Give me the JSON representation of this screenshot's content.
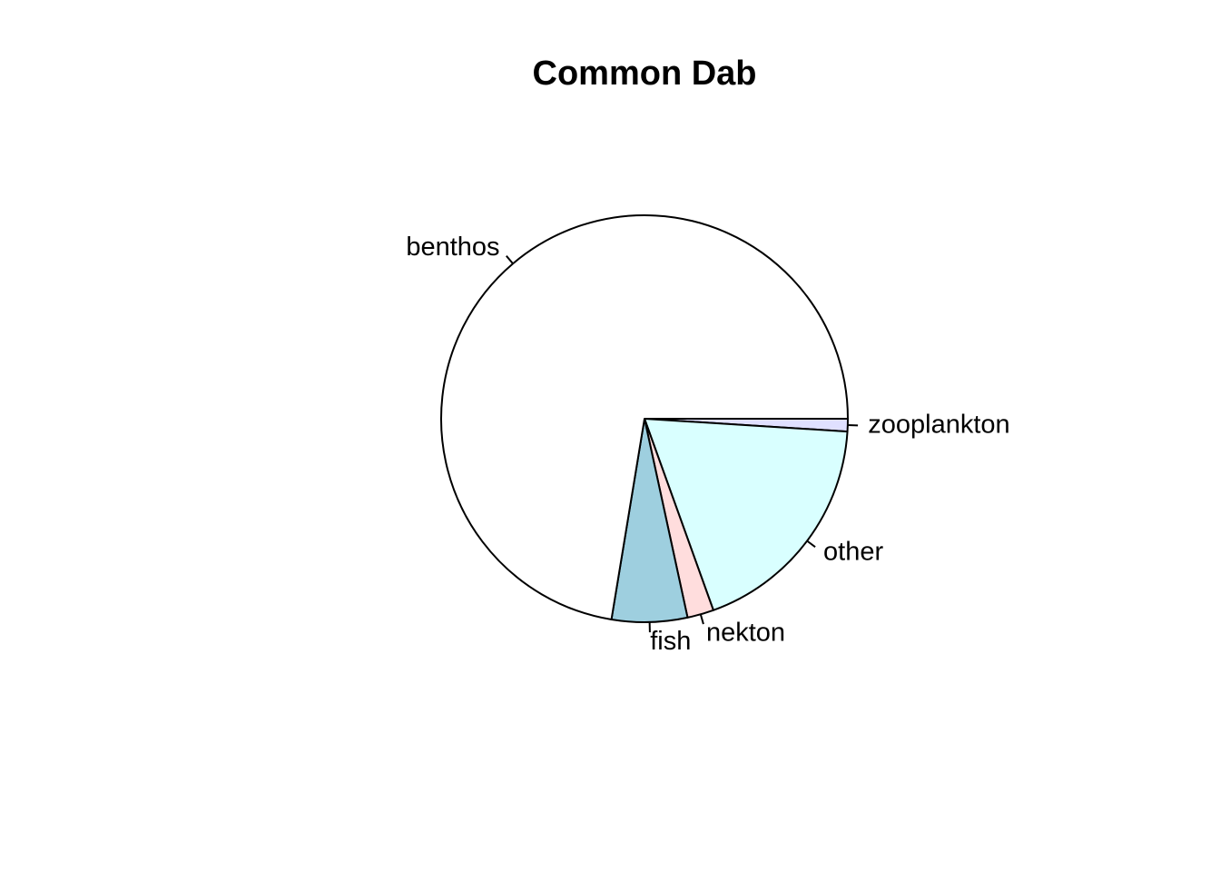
{
  "chart_data": {
    "type": "pie",
    "title": "Common Dab",
    "slices": [
      {
        "label": "zooplankton",
        "value": 1.0,
        "color": "#E0E0FF"
      },
      {
        "label": "other",
        "value": 18.5,
        "color": "#D9FFFF"
      },
      {
        "label": "nekton",
        "value": 2.1,
        "color": "#FFDDDD"
      },
      {
        "label": "fish",
        "value": 6.0,
        "color": "#9ECFDF"
      },
      {
        "label": "benthos",
        "value": 72.4,
        "color": "#FFFFFF"
      }
    ],
    "start_angle_deg": 0,
    "direction": "clockwise",
    "legend": "none",
    "border_color": "#000000"
  }
}
